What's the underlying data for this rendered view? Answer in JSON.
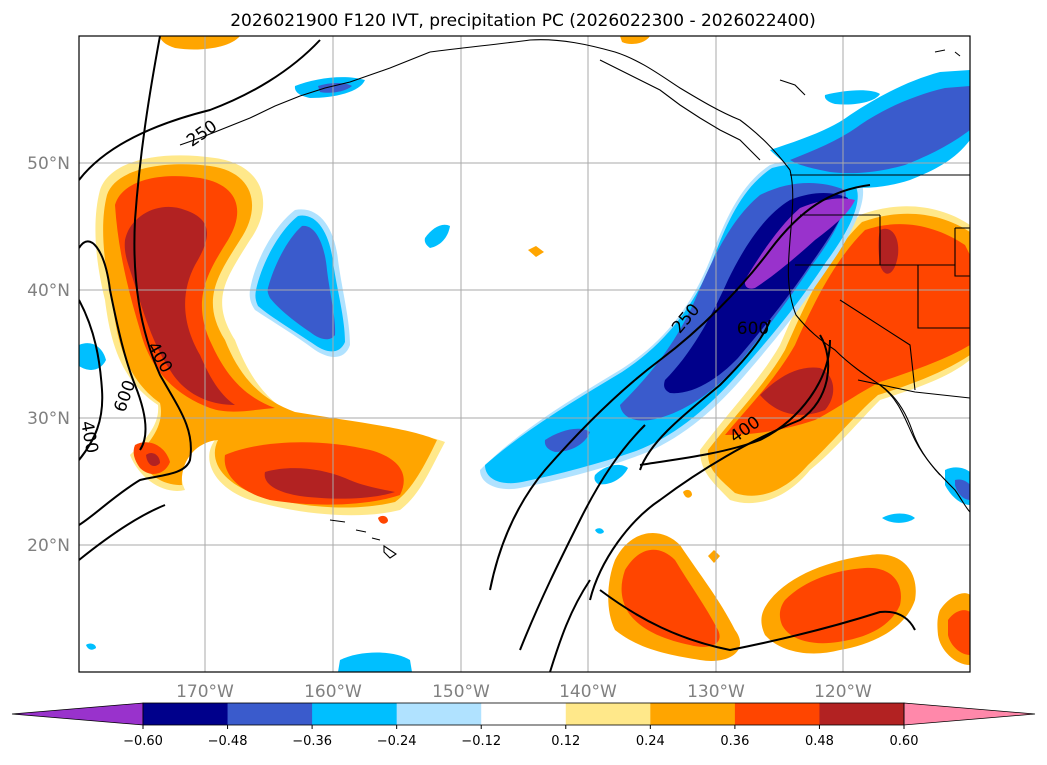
{
  "title": "2026021900 F120 IVT, precipitation PC (2026022300 - 2026022400)",
  "lat_labels": [
    "50°N",
    "40°N",
    "30°N",
    "20°N"
  ],
  "lon_labels": [
    "170°W",
    "160°W",
    "150°W",
    "140°W",
    "130°W",
    "120°W"
  ],
  "contour_labels": [
    "250",
    "400",
    "600",
    "400",
    "250",
    "600",
    "400"
  ],
  "colorbar": {
    "ticks": [
      "−0.60",
      "−0.48",
      "−0.36",
      "−0.24",
      "−0.12",
      "0.12",
      "0.24",
      "0.36",
      "0.48",
      "0.60"
    ],
    "colors": [
      "#9932cc",
      "#00008b",
      "#3a5bcc",
      "#00bfff",
      "#b0e2ff",
      "#ffffff",
      "#ffe88a",
      "#ffa500",
      "#ff4500",
      "#b22222",
      "#ff88aa"
    ],
    "extend": "both"
  },
  "colors": {
    "negative_strong": "#00008b",
    "positive_strong": "#b22222",
    "contour_line": "#000000",
    "gridline": "#aaaaaa"
  }
}
